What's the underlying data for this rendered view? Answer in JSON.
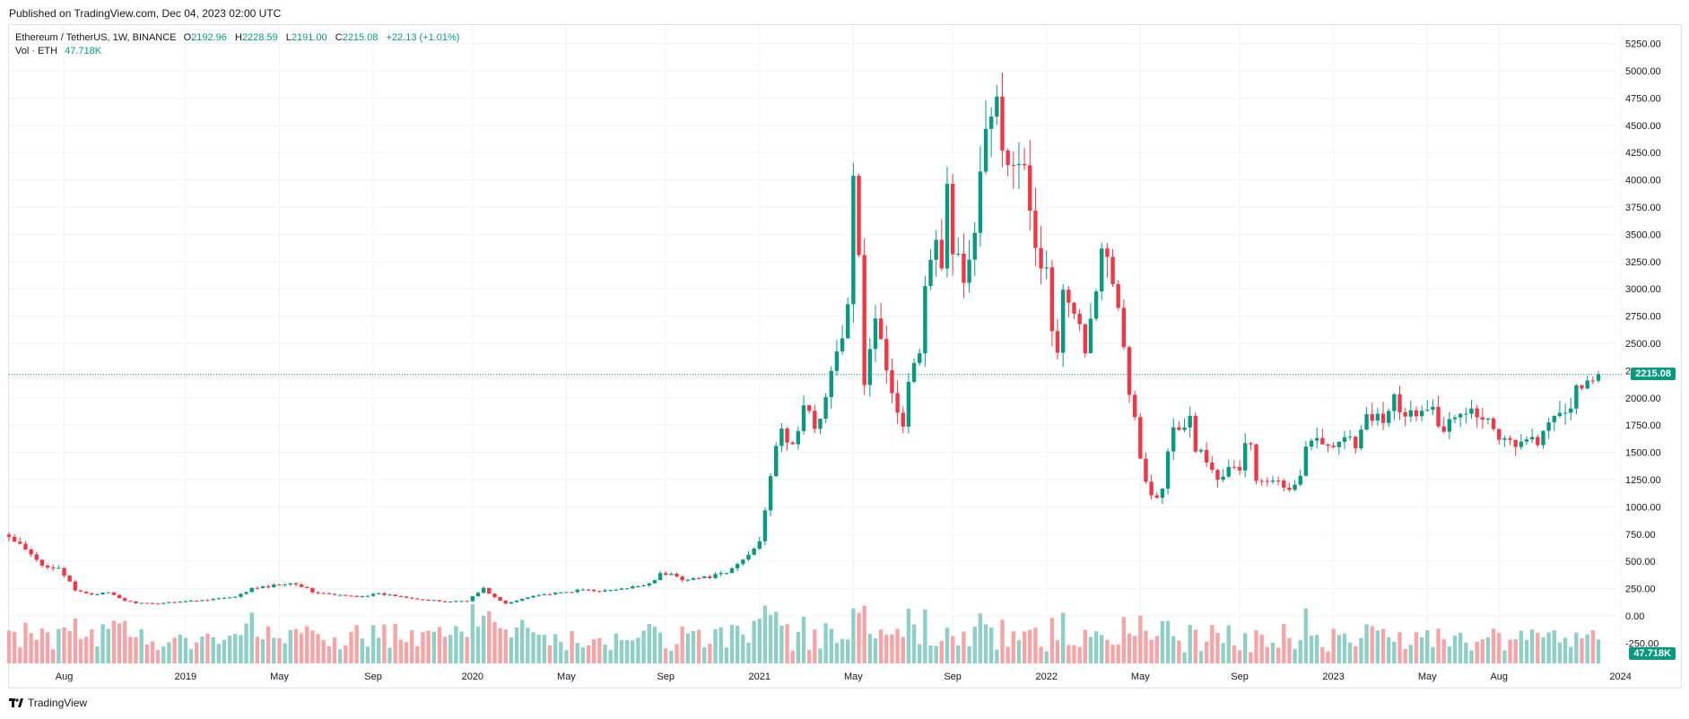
{
  "header": {
    "published": "Published on TradingView.com, Dec 04, 2023 02:00 UTC"
  },
  "legend": {
    "symbol": "Ethereum / TetherUS, 1W, BINANCE",
    "open_label": "O",
    "open": "2192.96",
    "high_label": "H",
    "high": "2228.59",
    "low_label": "L",
    "low": "2191.00",
    "close_label": "C",
    "close": "2215.08",
    "change": "+22.13 (+1.01%)",
    "vol_label": "Vol · ETH",
    "vol_value": "47.718K"
  },
  "footer": {
    "brand": "TradingView"
  },
  "colors": {
    "up": "#089981",
    "down": "#f23645",
    "vol_up": "#8fcfc6",
    "vol_down": "#f5a5a7",
    "grid": "#f0f3fa",
    "text": "#131722"
  },
  "chart_data": {
    "type": "candlestick",
    "symbol": "ETHUSDT",
    "interval": "1W",
    "exchange": "BINANCE",
    "y_ticks": [
      0,
      250,
      500,
      750,
      1000,
      1250,
      1500,
      1750,
      2000,
      2250,
      2500,
      2750,
      3000,
      3250,
      3500,
      3750,
      4000,
      4250,
      4500,
      4750,
      5000,
      5250
    ],
    "y_tick_labels": [
      "0.00",
      "250.00",
      "500.00",
      "750.00",
      "1000.00",
      "1250.00",
      "1500.00",
      "1750.00",
      "2000.00",
      "2250.00",
      "2500.00",
      "2750.00",
      "3000.00",
      "3250.00",
      "3500.00",
      "3750.00",
      "4000.00",
      "4250.00",
      "4500.00",
      "4750.00",
      "5000.00",
      "5250.00"
    ],
    "extra_tick": {
      "value": -250,
      "label": "-250.00"
    },
    "ylim": [
      -300,
      5350
    ],
    "x_ticks": [
      {
        "label": "Aug",
        "bar": 10
      },
      {
        "label": "2019",
        "bar": 32
      },
      {
        "label": "May",
        "bar": 49
      },
      {
        "label": "Sep",
        "bar": 66
      },
      {
        "label": "2020",
        "bar": 84
      },
      {
        "label": "May",
        "bar": 101
      },
      {
        "label": "Sep",
        "bar": 119
      },
      {
        "label": "2021",
        "bar": 136
      },
      {
        "label": "May",
        "bar": 153
      },
      {
        "label": "Sep",
        "bar": 171
      },
      {
        "label": "2022",
        "bar": 188
      },
      {
        "label": "May",
        "bar": 205
      },
      {
        "label": "Sep",
        "bar": 223
      },
      {
        "label": "2023",
        "bar": 240
      },
      {
        "label": "May",
        "bar": 257
      },
      {
        "label": "Aug",
        "bar": 270
      },
      {
        "label": "2024",
        "bar": 292
      }
    ],
    "close_anchors": [
      [
        0,
        720
      ],
      [
        3,
        600
      ],
      [
        6,
        460
      ],
      [
        9,
        450
      ],
      [
        12,
        230
      ],
      [
        15,
        200
      ],
      [
        18,
        210
      ],
      [
        21,
        140
      ],
      [
        23,
        120
      ],
      [
        26,
        110
      ],
      [
        30,
        130
      ],
      [
        34,
        140
      ],
      [
        38,
        160
      ],
      [
        41,
        170
      ],
      [
        44,
        250
      ],
      [
        47,
        270
      ],
      [
        50,
        300
      ],
      [
        52,
        300
      ],
      [
        55,
        220
      ],
      [
        59,
        190
      ],
      [
        63,
        180
      ],
      [
        67,
        200
      ],
      [
        71,
        180
      ],
      [
        75,
        150
      ],
      [
        79,
        130
      ],
      [
        83,
        140
      ],
      [
        86,
        250
      ],
      [
        88,
        170
      ],
      [
        90,
        110
      ],
      [
        92,
        140
      ],
      [
        95,
        190
      ],
      [
        100,
        210
      ],
      [
        104,
        240
      ],
      [
        108,
        230
      ],
      [
        112,
        250
      ],
      [
        116,
        300
      ],
      [
        118,
        380
      ],
      [
        120,
        380
      ],
      [
        122,
        340
      ],
      [
        126,
        350
      ],
      [
        130,
        390
      ],
      [
        134,
        560
      ],
      [
        136,
        700
      ],
      [
        138,
        1300
      ],
      [
        140,
        1700
      ],
      [
        142,
        1550
      ],
      [
        144,
        1900
      ],
      [
        146,
        1750
      ],
      [
        148,
        2000
      ],
      [
        150,
        2400
      ],
      [
        152,
        2800
      ],
      [
        153,
        3900
      ],
      [
        154,
        3400
      ],
      [
        155,
        2200
      ],
      [
        157,
        2800
      ],
      [
        159,
        2300
      ],
      [
        160,
        2000
      ],
      [
        162,
        1800
      ],
      [
        163,
        2200
      ],
      [
        165,
        2500
      ],
      [
        167,
        3400
      ],
      [
        169,
        3300
      ],
      [
        170,
        3900
      ],
      [
        171,
        3400
      ],
      [
        173,
        3100
      ],
      [
        175,
        3500
      ],
      [
        176,
        4100
      ],
      [
        177,
        4400
      ],
      [
        178,
        4500
      ],
      [
        179,
        4700
      ],
      [
        180,
        4300
      ],
      [
        182,
        4100
      ],
      [
        184,
        4000
      ],
      [
        186,
        3500
      ],
      [
        188,
        3100
      ],
      [
        189,
        2600
      ],
      [
        190,
        2400
      ],
      [
        191,
        2900
      ],
      [
        193,
        2700
      ],
      [
        195,
        2500
      ],
      [
        197,
        3000
      ],
      [
        198,
        3500
      ],
      [
        199,
        3300
      ],
      [
        200,
        3000
      ],
      [
        201,
        2800
      ],
      [
        202,
        2400
      ],
      [
        203,
        2000
      ],
      [
        204,
        1800
      ],
      [
        205,
        1500
      ],
      [
        206,
        1200
      ],
      [
        207,
        1100
      ],
      [
        208,
        1100
      ],
      [
        209,
        1200
      ],
      [
        210,
        1550
      ],
      [
        211,
        1800
      ],
      [
        213,
        1700
      ],
      [
        214,
        1900
      ],
      [
        215,
        1550
      ],
      [
        217,
        1450
      ],
      [
        219,
        1300
      ],
      [
        221,
        1330
      ],
      [
        223,
        1350
      ],
      [
        224,
        1600
      ],
      [
        225,
        1550
      ],
      [
        226,
        1250
      ],
      [
        228,
        1200
      ],
      [
        230,
        1250
      ],
      [
        232,
        1200
      ],
      [
        234,
        1300
      ],
      [
        235,
        1550
      ],
      [
        236,
        1650
      ],
      [
        238,
        1550
      ],
      [
        240,
        1600
      ],
      [
        242,
        1650
      ],
      [
        244,
        1580
      ],
      [
        246,
        1800
      ],
      [
        248,
        1800
      ],
      [
        250,
        1850
      ],
      [
        251,
        2100
      ],
      [
        252,
        1800
      ],
      [
        254,
        1850
      ],
      [
        256,
        1870
      ],
      [
        258,
        1850
      ],
      [
        260,
        1750
      ],
      [
        262,
        1850
      ],
      [
        264,
        1900
      ],
      [
        266,
        1870
      ],
      [
        268,
        1800
      ],
      [
        270,
        1650
      ],
      [
        272,
        1620
      ],
      [
        274,
        1580
      ],
      [
        276,
        1600
      ],
      [
        278,
        1650
      ],
      [
        280,
        1800
      ],
      [
        282,
        1880
      ],
      [
        284,
        2050
      ],
      [
        286,
        2080
      ],
      [
        287,
        2200
      ],
      [
        288,
        2215
      ]
    ],
    "last_close": 2215.08,
    "last_volume_label": "47.718K",
    "bars": 289
  }
}
